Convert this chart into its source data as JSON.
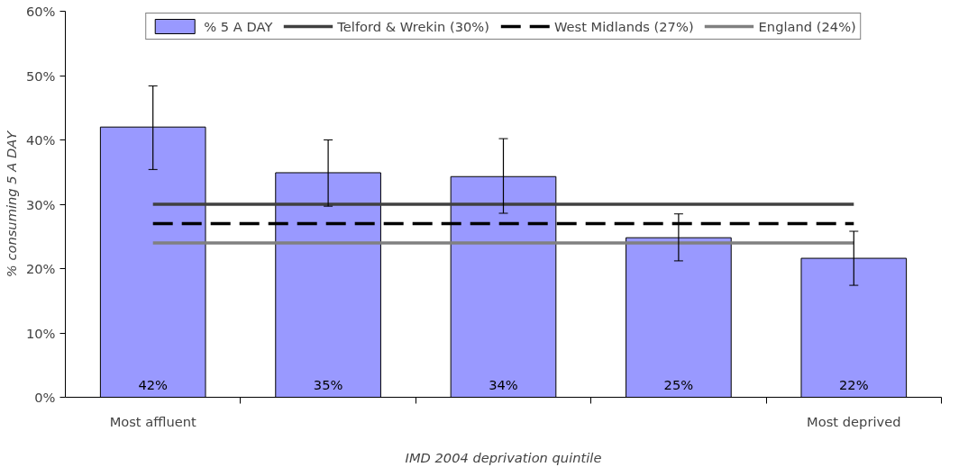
{
  "chart_data": {
    "type": "bar",
    "xlabel": "IMD 2004 deprivation quintile",
    "ylabel": "% consuming 5 A DAY",
    "categories": [
      "Most affluent",
      null,
      null,
      null,
      "Most deprived"
    ],
    "series": [
      {
        "name": "% 5 A DAY",
        "type": "bar",
        "color": "#9999ff",
        "values": [
          42.0,
          34.9,
          34.3,
          24.8,
          21.6
        ],
        "errors": [
          [
            35.4,
            48.4
          ],
          [
            29.7,
            40.0
          ],
          [
            28.6,
            40.2
          ],
          [
            21.2,
            28.5
          ],
          [
            17.4,
            25.8
          ]
        ],
        "value_labels": [
          "42%",
          "35%",
          "34%",
          "25%",
          "22%"
        ]
      },
      {
        "name": "Telford & Wrekin (30%)",
        "type": "line",
        "color": "#404040",
        "line_style": "solid",
        "values": [
          30,
          30,
          30,
          30,
          30
        ]
      },
      {
        "name": "West Midlands (27%)",
        "type": "line",
        "color": "#000000",
        "line_style": "dashed",
        "values": [
          27,
          27,
          27,
          27,
          27
        ]
      },
      {
        "name": "England (24%)",
        "type": "line",
        "color": "#808080",
        "line_style": "solid",
        "values": [
          24,
          24,
          24,
          24,
          24
        ]
      }
    ],
    "ylim": [
      0,
      60
    ],
    "yticks": [
      {
        "value": 0,
        "label": "0%"
      },
      {
        "value": 10,
        "label": "10%"
      },
      {
        "value": 20,
        "label": "20%"
      },
      {
        "value": 30,
        "label": "30%"
      },
      {
        "value": 40,
        "label": "40%"
      },
      {
        "value": 50,
        "label": "50%"
      },
      {
        "value": 60,
        "label": "60%"
      }
    ],
    "grid": false,
    "legend": "top",
    "marker": "none"
  }
}
